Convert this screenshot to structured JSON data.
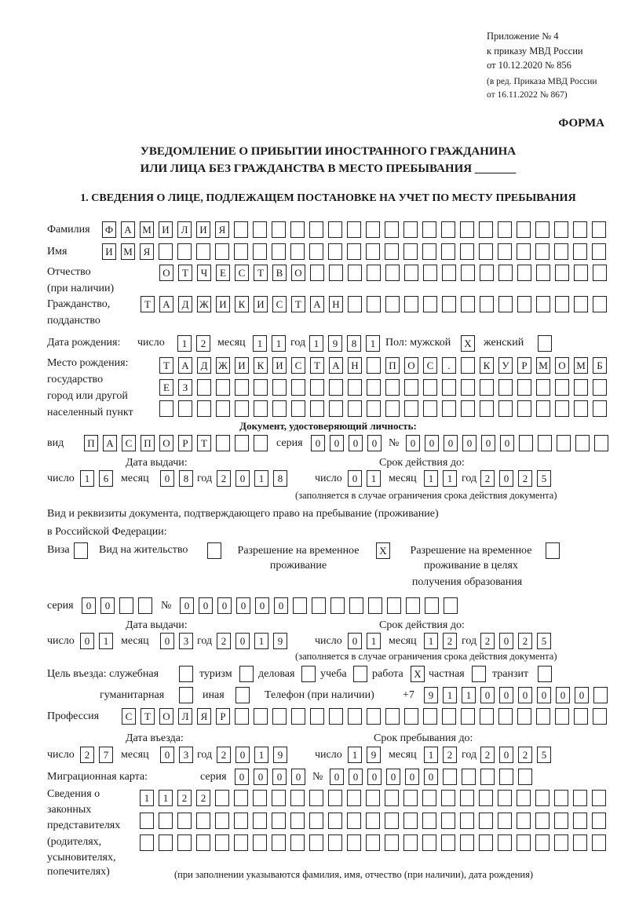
{
  "header": {
    "appendix": "Приложение № 4",
    "order": "к приказу МВД России",
    "order_date": "от 10.12.2020 № 856",
    "revision": "(в ред. Приказа МВД России",
    "revision_date": "от 16.11.2022 № 867)",
    "form_label": "ФОРМА",
    "title_line1": "УВЕДОМЛЕНИЕ О ПРИБЫТИИ ИНОСТРАННОГО ГРАЖДАНИНА",
    "title_line2": "ИЛИ ЛИЦА БЕЗ ГРАЖДАНСТВА В МЕСТО ПРЕБЫВАНИЯ _______",
    "section1": "1. СВЕДЕНИЯ О ЛИЦЕ, ПОДЛЕЖАЩЕМ ПОСТАНОВКЕ НА УЧЕТ ПО МЕСТУ ПРЕБЫВАНИЯ"
  },
  "labels": {
    "surname": "Фамилия",
    "name": "Имя",
    "patronymic": "Отчество",
    "patronymic_note": "(при наличии)",
    "citizenship": "Гражданство,",
    "citizenship2": "подданство",
    "birth_date": "Дата рождения:",
    "day": "число",
    "month": "месяц",
    "year": "год",
    "sex_male": "Пол: мужской",
    "sex_female": "женский",
    "birth_place": "Место рождения:",
    "birth_place2": "государство",
    "birth_place3": "город или другой",
    "birth_place4": "населенный пункт",
    "id_doc": "Документ, удостоверяющий личность:",
    "kind": "вид",
    "series": "серия",
    "number": "№",
    "issue_date": "Дата выдачи:",
    "valid_until": "Срок действия до:",
    "valid_note": "(заполняется в случае ограничения срока действия документа)",
    "stay_doc": "Вид и реквизиты документа, подтверждающего право на пребывание (проживание)",
    "stay_doc2": "в Российской Федерации:",
    "visa": "Виза",
    "residence": "Вид на жительство",
    "trp1": "Разрешение на временное",
    "trp2": "проживание",
    "trp_edu1": "Разрешение на временное",
    "trp_edu2": "проживание в целях",
    "trp_edu3": "получения образования",
    "purpose": "Цель въезда: служебная",
    "tourism": "туризм",
    "business": "деловая",
    "study": "учеба",
    "work": "работа",
    "private": "частная",
    "transit": "транзит",
    "humanitarian": "гуманитарная",
    "other": "иная",
    "phone": "Телефон (при наличии)",
    "phone_prefix": "+7",
    "profession": "Профессия",
    "entry_date": "Дата въезда:",
    "stay_until": "Срок пребывания до:",
    "migration_card": "Миграционная карта:",
    "reps1": "Сведения о",
    "reps2": "законных",
    "reps3": "представителях",
    "reps4": "(родителях,",
    "reps5": "усыновителях,",
    "reps6": "попечителях)",
    "reps_note": "(при заполнении указываются фамилия, имя, отчество (при наличии), дата рождения)"
  },
  "values": {
    "surname": "ФАМИЛИЯ",
    "name": "ИМЯ",
    "patronymic": "ОТЧЕСТВО",
    "citizenship": "ТАДЖИКИСТАН",
    "birth_day": "12",
    "birth_month": "11",
    "birth_year": "1981",
    "sex_male": "X",
    "sex_female": "",
    "birth_place1": "ТАДЖИКИСТАН ПОС. КУРМОМБ",
    "birth_place2": "ЕЗ",
    "birth_place3": "",
    "id_kind": "ПАСПОРТ",
    "id_series": "0000",
    "id_number": "000000",
    "id_issue_day": "16",
    "id_issue_month": "08",
    "id_issue_year": "2018",
    "id_valid_day": "01",
    "id_valid_month": "11",
    "id_valid_year": "2025",
    "visa": "",
    "residence": "",
    "trp": "X",
    "trp_edu": "",
    "stay_series": "00",
    "stay_number": "000000",
    "stay_issue_day": "01",
    "stay_issue_month": "03",
    "stay_issue_year": "2019",
    "stay_valid_day": "01",
    "stay_valid_month": "12",
    "stay_valid_year": "2025",
    "p_service": "",
    "p_tourism": "",
    "p_business": "",
    "p_study": "",
    "p_work": "X",
    "p_private": "",
    "p_transit": "",
    "p_humanitarian": "",
    "p_other": "",
    "phone": "911000000",
    "profession": "СТОЛЯР",
    "entry_day": "27",
    "entry_month": "03",
    "entry_year": "2019",
    "until_day": "19",
    "until_month": "12",
    "until_year": "2025",
    "mc_series": "0000",
    "mc_number": "000000",
    "reps1": "1122",
    "reps2": "",
    "reps3": ""
  }
}
